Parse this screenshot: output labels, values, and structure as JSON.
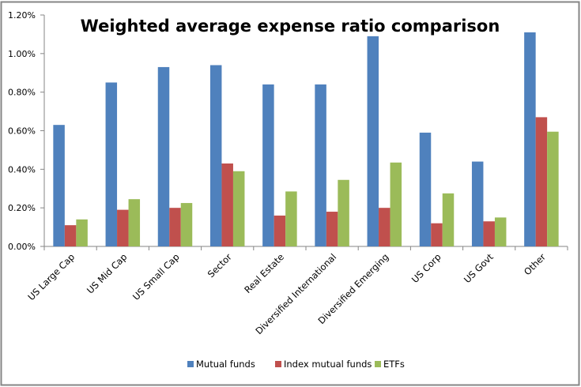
{
  "chart_data": {
    "type": "bar",
    "title": "Weighted average expense ratio comparison",
    "xlabel": "",
    "ylabel": "",
    "ylim": [
      0,
      1.2
    ],
    "yticks": [
      0,
      0.2,
      0.4,
      0.6,
      0.8,
      1.0,
      1.2
    ],
    "ytick_labels": [
      "0.00%",
      "0.20%",
      "0.40%",
      "0.60%",
      "0.80%",
      "1.00%",
      "1.20%"
    ],
    "grid": false,
    "legend_position": "bottom",
    "categories": [
      "US Large Cap",
      "US Mid Cap",
      "US Small Cap",
      "Sector",
      "Real Estate",
      "Diversified International",
      "Diversified Emerging",
      "US Corp",
      "US Govt",
      "Other"
    ],
    "series": [
      {
        "name": "Mutual funds",
        "color": "#4f81bd",
        "values": [
          0.63,
          0.85,
          0.93,
          0.94,
          0.84,
          0.84,
          1.09,
          0.59,
          0.44,
          1.11
        ]
      },
      {
        "name": "Index mutual funds",
        "color": "#c0504d",
        "values": [
          0.11,
          0.19,
          0.2,
          0.43,
          0.16,
          0.18,
          0.2,
          0.12,
          0.13,
          0.67
        ]
      },
      {
        "name": "ETFs",
        "color": "#9bbb59",
        "values": [
          0.14,
          0.245,
          0.225,
          0.39,
          0.285,
          0.345,
          0.435,
          0.275,
          0.15,
          0.595
        ]
      }
    ]
  }
}
